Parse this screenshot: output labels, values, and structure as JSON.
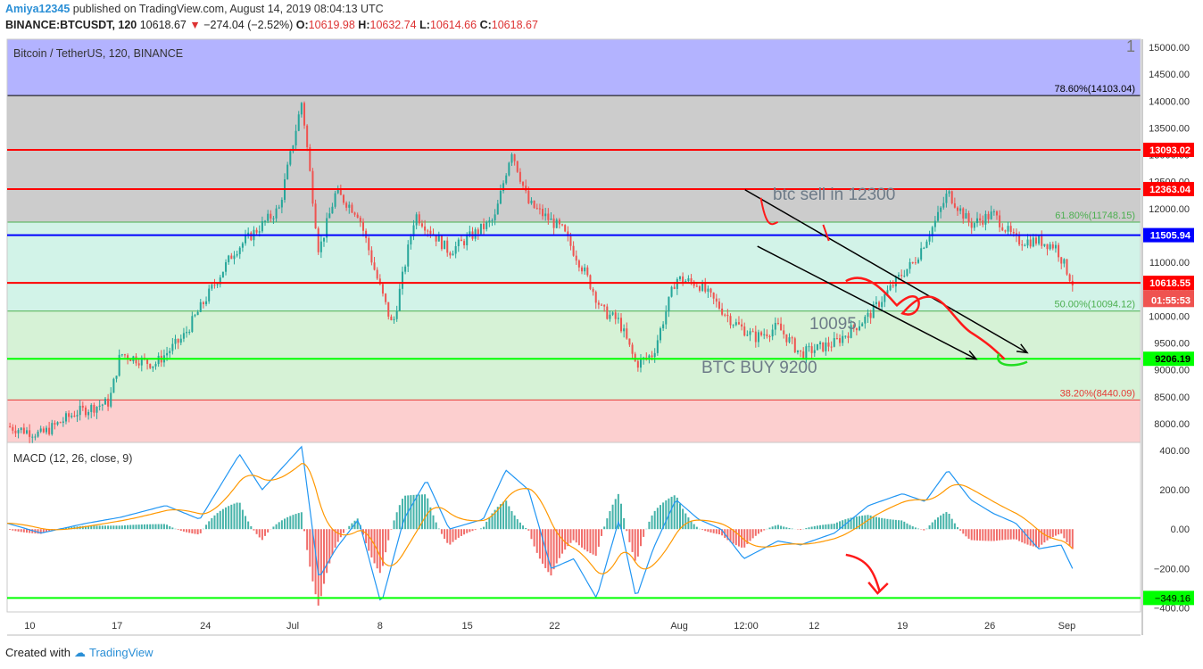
{
  "header": {
    "author": "Amiya12345",
    "published_text": "published on TradingView.com, August 14, 2019 08:04:13 UTC",
    "symbol": "BINANCE:BTCUSDT, 120",
    "last": "10618.67",
    "change": "−274.04 (−2.52%)",
    "o_label": "O:",
    "o": "10619.98",
    "h_label": "H:",
    "h": "10632.74",
    "l_label": "L:",
    "l": "10614.66",
    "c_label": "C:",
    "c": "10618.67"
  },
  "footer": {
    "created_with": "Created with",
    "brand": "TradingView"
  },
  "colors": {
    "up": "#26a69a",
    "down": "#ef5350",
    "macd": "#2196f3",
    "signal": "#ff9800",
    "red_line": "#ff0000",
    "blue_line": "#0000ff",
    "green_line": "#00ff00"
  },
  "chart_data": {
    "type": "candlestick",
    "title": "Bitcoin / TetherUS, 120, BINANCE",
    "y_axis": {
      "ylim": [
        7650,
        15150
      ],
      "ticks": [
        8000,
        8500,
        9000,
        9500,
        10000,
        10500,
        11000,
        11500,
        12000,
        12500,
        13000,
        13500,
        14000,
        14500,
        15000
      ],
      "tick_labels": [
        "8000.00",
        "8500.00",
        "9000.00",
        "9500.00",
        "10000.00",
        "10500.00",
        "11000.00",
        "11500.00",
        "12000.00",
        "12500.00",
        "13000.00",
        "13500.00",
        "14000.00",
        "14500.00",
        "15000.00"
      ],
      "top_partial_label": "1"
    },
    "x_axis": {
      "ticks": [
        "10",
        "17",
        "24",
        "Jul",
        "8",
        "15",
        "22",
        "Aug",
        "12:00",
        "12",
        "19",
        "26",
        "Sep"
      ]
    },
    "fib_zones": [
      {
        "from": 14103.04,
        "to": 15150,
        "color": "#b3b3ff"
      },
      {
        "from": 11748.15,
        "to": 14103.04,
        "color": "#cccccc"
      },
      {
        "from": 10094.12,
        "to": 11748.15,
        "color": "#d2f3e8"
      },
      {
        "from": 8440.09,
        "to": 10094.12,
        "color": "#d6f2d6"
      },
      {
        "from": 7650,
        "to": 8440.09,
        "color": "#fccfcf"
      }
    ],
    "fib_levels": [
      {
        "label": "78.60%(14103.04)",
        "value": 14103.04,
        "color": "#000000"
      },
      {
        "label": "61.80%(11748.15)",
        "value": 11748.15,
        "color": "#4caf50"
      },
      {
        "label": "50.00%(10094.12)",
        "value": 10094.12,
        "color": "#4caf50"
      },
      {
        "label": "38.20%(8440.09)",
        "value": 8440.09,
        "color": "#e53935"
      }
    ],
    "hlines": [
      {
        "value": 13093.02,
        "label": "13093.02",
        "color": "#ff0000"
      },
      {
        "value": 12363.04,
        "label": "12363.04",
        "color": "#ff0000"
      },
      {
        "value": 11505.94,
        "label": "11505.94",
        "color": "#0000ff"
      },
      {
        "value": 10618.55,
        "label": "10618.55",
        "color": "#ff0000"
      },
      {
        "value": 9206.19,
        "label": "9206.19",
        "color": "#00ff00"
      }
    ],
    "price_tags": [
      {
        "value": 10618.67,
        "label": "10618.67",
        "color": "#ef5350"
      },
      {
        "value": 10300,
        "label": "01:55:53",
        "color": "#ef5350"
      }
    ],
    "price_path": [
      [
        0,
        7950
      ],
      [
        0.03,
        7800
      ],
      [
        0.06,
        8200
      ],
      [
        0.09,
        8400
      ],
      [
        0.1,
        9300
      ],
      [
        0.13,
        9100
      ],
      [
        0.155,
        9600
      ],
      [
        0.2,
        11200
      ],
      [
        0.24,
        12000
      ],
      [
        0.26,
        14000
      ],
      [
        0.275,
        11200
      ],
      [
        0.29,
        12300
      ],
      [
        0.31,
        11900
      ],
      [
        0.325,
        10800
      ],
      [
        0.34,
        9800
      ],
      [
        0.36,
        11900
      ],
      [
        0.39,
        11200
      ],
      [
        0.41,
        11500
      ],
      [
        0.43,
        11800
      ],
      [
        0.445,
        13100
      ],
      [
        0.46,
        12100
      ],
      [
        0.49,
        11600
      ],
      [
        0.51,
        10800
      ],
      [
        0.525,
        10100
      ],
      [
        0.54,
        9900
      ],
      [
        0.555,
        9100
      ],
      [
        0.57,
        9300
      ],
      [
        0.59,
        10700
      ],
      [
        0.61,
        10600
      ],
      [
        0.64,
        9900
      ],
      [
        0.66,
        9600
      ],
      [
        0.68,
        9800
      ],
      [
        0.7,
        9300
      ],
      [
        0.73,
        9500
      ],
      [
        0.76,
        10000
      ],
      [
        0.79,
        10800
      ],
      [
        0.8,
        11000
      ],
      [
        0.82,
        11800
      ],
      [
        0.83,
        12300
      ],
      [
        0.85,
        11700
      ],
      [
        0.87,
        11900
      ],
      [
        0.89,
        11400
      ],
      [
        0.91,
        11400
      ],
      [
        0.925,
        11300
      ],
      [
        0.94,
        10620
      ]
    ],
    "annotations": [
      {
        "text": "btc sell in 12300",
        "color": "#6d7b88"
      },
      {
        "text": "10095",
        "color": "#6d7b88"
      },
      {
        "text": "BTC BUY  9200",
        "color": "#6d7b88"
      }
    ],
    "macd": {
      "title": "MACD (12, 26, close, 9)",
      "ylim": [
        -420,
        440
      ],
      "ticks": [
        400,
        200,
        0,
        -200,
        -400
      ],
      "tick_labels": [
        "400.00",
        "200.00",
        "0.00",
        "−200.00",
        "−400.00"
      ],
      "hline": {
        "value": -349.16,
        "label": "−349.16",
        "color": "#00ff00"
      },
      "macd_path": [
        [
          0,
          30
        ],
        [
          0.03,
          -20
        ],
        [
          0.07,
          30
        ],
        [
          0.1,
          60
        ],
        [
          0.14,
          120
        ],
        [
          0.17,
          50
        ],
        [
          0.205,
          380
        ],
        [
          0.225,
          200
        ],
        [
          0.26,
          420
        ],
        [
          0.275,
          -250
        ],
        [
          0.29,
          -100
        ],
        [
          0.31,
          50
        ],
        [
          0.33,
          -380
        ],
        [
          0.35,
          50
        ],
        [
          0.37,
          250
        ],
        [
          0.39,
          0
        ],
        [
          0.42,
          50
        ],
        [
          0.44,
          300
        ],
        [
          0.46,
          200
        ],
        [
          0.48,
          -200
        ],
        [
          0.5,
          -150
        ],
        [
          0.52,
          -350
        ],
        [
          0.54,
          50
        ],
        [
          0.555,
          -350
        ],
        [
          0.57,
          -100
        ],
        [
          0.59,
          150
        ],
        [
          0.61,
          50
        ],
        [
          0.63,
          0
        ],
        [
          0.65,
          -150
        ],
        [
          0.68,
          -60
        ],
        [
          0.7,
          -80
        ],
        [
          0.73,
          -20
        ],
        [
          0.76,
          120
        ],
        [
          0.79,
          180
        ],
        [
          0.81,
          140
        ],
        [
          0.83,
          300
        ],
        [
          0.85,
          150
        ],
        [
          0.87,
          80
        ],
        [
          0.89,
          30
        ],
        [
          0.91,
          -100
        ],
        [
          0.93,
          -80
        ],
        [
          0.94,
          -200
        ]
      ]
    }
  }
}
